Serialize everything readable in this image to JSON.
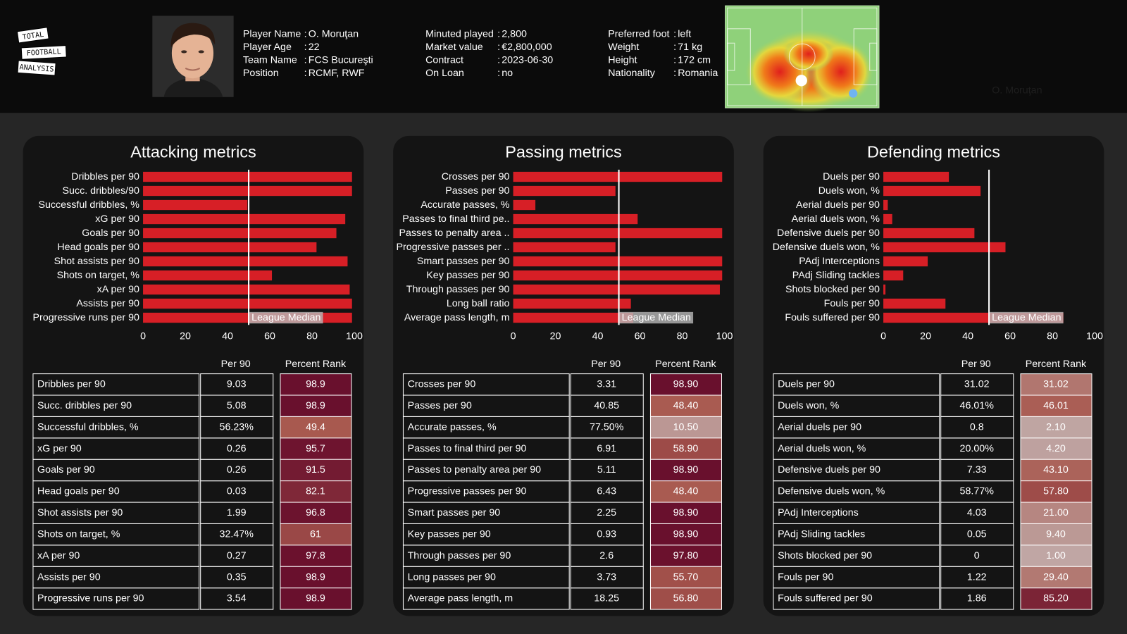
{
  "header": {
    "logo": [
      "TOTAL",
      "FOOTBALL",
      "ANALYSIS"
    ],
    "separator": ":",
    "columns": [
      [
        [
          "Player Name",
          "O. Moruţan"
        ],
        [
          "Player Age",
          "22"
        ],
        [
          "Team Name",
          "FCS Bucureşti"
        ],
        [
          "Position",
          "RCMF, RWF"
        ]
      ],
      [
        [
          "Minuted played",
          "2,800"
        ],
        [
          "Market value",
          "€2,800,000"
        ],
        [
          "Contract",
          "2023-06-30"
        ],
        [
          "On Loan",
          "no"
        ]
      ],
      [
        [
          "Preferred foot",
          "left"
        ],
        [
          "Weight",
          "71 kg"
        ],
        [
          "Height",
          "172 cm"
        ],
        [
          "Nationality",
          "Romania"
        ]
      ]
    ]
  },
  "chart_data": [
    {
      "type": "bar",
      "orientation": "horizontal",
      "title": "Attacking metrics",
      "categories": [
        "Dribbles per 90",
        "Succ. dribbles/90",
        "Successful dribbles, %",
        "xG per 90",
        "Goals per 90",
        "Head goals per 90",
        "Shot assists per 90",
        "Shots on target, %",
        "xA per 90",
        "Assists per 90",
        "Progressive runs per 90"
      ],
      "values": [
        98.9,
        98.9,
        49.4,
        95.7,
        91.5,
        82.1,
        96.8,
        61,
        97.8,
        98.9,
        98.9
      ],
      "color": "#d71f26",
      "xlim": [
        0,
        100
      ],
      "xticks": [
        0,
        20,
        40,
        60,
        80,
        100
      ],
      "median": {
        "value": 50,
        "label": "League Median"
      }
    },
    {
      "type": "bar",
      "orientation": "horizontal",
      "title": "Passing metrics",
      "categories": [
        "Crosses per 90",
        "Passes per 90",
        "Accurate passes, %",
        "Passes to final third pe..",
        "Passes to penalty area ..",
        "Progressive passes per ..",
        "Smart passes per 90",
        "Key passes per 90",
        "Through passes per 90",
        "Long ball ratio",
        "Average pass length, m"
      ],
      "values": [
        98.9,
        48.4,
        10.5,
        58.9,
        98.9,
        48.4,
        98.9,
        98.9,
        97.8,
        55.7,
        56.8
      ],
      "color": "#d71f26",
      "xlim": [
        0,
        100
      ],
      "xticks": [
        0,
        20,
        40,
        60,
        80,
        100
      ],
      "median": {
        "value": 50,
        "label": "League Median"
      }
    },
    {
      "type": "bar",
      "orientation": "horizontal",
      "title": "Defending metrics",
      "categories": [
        "Duels per 90",
        "Duels won, %",
        "Aerial duels per 90",
        "Aerial duels won, %",
        "Defensive duels per 90",
        "Defensive duels won, %",
        "PAdj Interceptions",
        "PAdj Sliding tackles",
        "Shots blocked per 90",
        "Fouls per 90",
        "Fouls suffered per 90"
      ],
      "values": [
        31.02,
        46.01,
        2.1,
        4.2,
        43.1,
        57.8,
        21,
        9.4,
        1,
        29.4,
        85.2
      ],
      "color": "#d71f26",
      "xlim": [
        0,
        100
      ],
      "xticks": [
        0,
        20,
        40,
        60,
        80,
        100
      ],
      "median": {
        "value": 50,
        "label": "League Median"
      }
    }
  ],
  "tables": [
    {
      "columns": [
        "Per 90",
        "Percent Rank"
      ],
      "rows": [
        [
          "Dribbles per 90",
          "9.03",
          "98.9"
        ],
        [
          "Succ. dribbles per 90",
          "5.08",
          "98.9"
        ],
        [
          "Successful dribbles, %",
          "56.23%",
          "49.4"
        ],
        [
          "xG per 90",
          "0.26",
          "95.7"
        ],
        [
          "Goals per 90",
          "0.26",
          "91.5"
        ],
        [
          "Head goals per 90",
          "0.03",
          "82.1"
        ],
        [
          "Shot assists per 90",
          "1.99",
          "96.8"
        ],
        [
          "Shots on target, %",
          "32.47%",
          "61"
        ],
        [
          "xA per 90",
          "0.27",
          "97.8"
        ],
        [
          "Assists per 90",
          "0.35",
          "98.9"
        ],
        [
          "Progressive runs per 90",
          "3.54",
          "98.9"
        ]
      ]
    },
    {
      "columns": [
        "Per 90",
        "Percent Rank"
      ],
      "rows": [
        [
          "Crosses per 90",
          "3.31",
          "98.90"
        ],
        [
          "Passes per 90",
          "40.85",
          "48.40"
        ],
        [
          "Accurate passes, %",
          "77.50%",
          "10.50"
        ],
        [
          "Passes to final third per 90",
          "6.91",
          "58.90"
        ],
        [
          "Passes to penalty area per 90",
          "5.11",
          "98.90"
        ],
        [
          "Progressive passes per 90",
          "6.43",
          "48.40"
        ],
        [
          "Smart passes per 90",
          "2.25",
          "98.90"
        ],
        [
          "Key passes per 90",
          "0.93",
          "98.90"
        ],
        [
          "Through passes per 90",
          "2.6",
          "97.80"
        ],
        [
          "Long passes per 90",
          "3.73",
          "55.70"
        ],
        [
          "Average pass length, m",
          "18.25",
          "56.80"
        ]
      ]
    },
    {
      "columns": [
        "Per 90",
        "Percent Rank"
      ],
      "rows": [
        [
          "Duels per 90",
          "31.02",
          "31.02"
        ],
        [
          "Duels won, %",
          "46.01%",
          "46.01"
        ],
        [
          "Aerial duels per 90",
          "0.8",
          "2.10"
        ],
        [
          "Aerial duels won, %",
          "20.00%",
          "4.20"
        ],
        [
          "Defensive duels per 90",
          "7.33",
          "43.10"
        ],
        [
          "Defensive duels won, %",
          "58.77%",
          "57.80"
        ],
        [
          "PAdj Interceptions",
          "4.03",
          "21.00"
        ],
        [
          "PAdj Sliding tackles",
          "0.05",
          "9.40"
        ],
        [
          "Shots blocked per 90",
          "0",
          "1.00"
        ],
        [
          "Fouls per 90",
          "1.22",
          "29.40"
        ],
        [
          "Fouls suffered per 90",
          "1.86",
          "85.20"
        ]
      ]
    }
  ]
}
